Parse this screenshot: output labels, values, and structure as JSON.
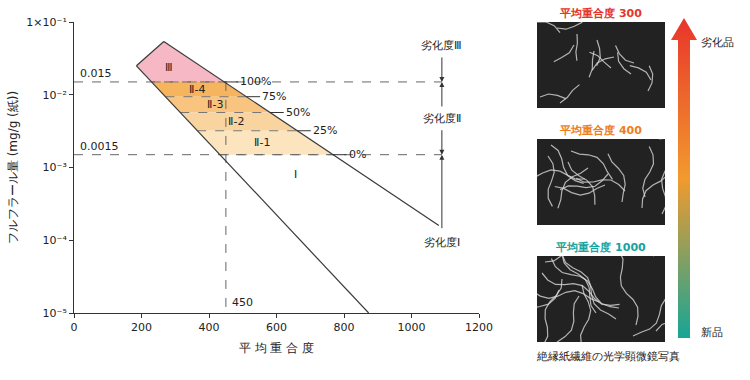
{
  "chart_data": {
    "type": "line",
    "x_label": "平 均 重 合 度",
    "y_label": "フルフラール量 (mg/g (紙))",
    "xlim": [
      0,
      1200
    ],
    "ylim": [
      1e-05,
      0.1
    ],
    "log": "y",
    "grid": false,
    "xticks": [
      0,
      200,
      400,
      600,
      800,
      1000,
      1200
    ],
    "yticks": [
      {
        "value": 1e-05,
        "label": "10⁻⁵"
      },
      {
        "value": 0.0001,
        "label": "10⁻⁴"
      },
      {
        "value": 0.001,
        "label": "10⁻³"
      },
      {
        "value": 0.01,
        "label": "10⁻²"
      },
      {
        "value": 0.1,
        "label": "1×10⁻¹"
      }
    ],
    "series": [
      {
        "x": [
          266,
          1081
        ],
        "values": [
          0.054,
          0.00016
        ],
        "color": "#3a3a3a"
      },
      {
        "x": [
          185,
          873
        ],
        "values": [
          0.025,
          1e-05
        ],
        "color": "#3a3a3a"
      },
      {
        "x": [
          185,
          266
        ],
        "values": [
          0.025,
          0.054
        ],
        "color": "#3a3a3a"
      }
    ],
    "zones": [
      {
        "label": "Ⅲ",
        "color": "#f5b8c4",
        "x": [
          185,
          266,
          445,
          230
        ],
        "values": [
          0.025,
          0.054,
          0.015,
          0.015
        ]
      }
    ],
    "levels": [
      {
        "text": "100%",
        "y": 0.015,
        "x_lower": 230,
        "x_upper": 445
      },
      {
        "text": "75%",
        "y": 0.0094,
        "x_lower": 271,
        "x_upper": 510
      },
      {
        "text": "50%",
        "y": 0.0057,
        "x_lower": 315,
        "x_upper": 580
      },
      {
        "text": "25%",
        "y": 0.0032,
        "x_lower": 365,
        "x_upper": 660
      },
      {
        "text": "0%",
        "y": 0.0015,
        "x_lower": 432,
        "x_upper": 766
      }
    ],
    "sub_zones": [
      {
        "label": "Ⅱ-4",
        "color": "#f6b45f"
      },
      {
        "label": "Ⅱ-3",
        "color": "#f8c47f"
      },
      {
        "label": "Ⅱ-2",
        "color": "#fad49e"
      },
      {
        "label": "Ⅱ-1",
        "color": "#fce4be"
      }
    ],
    "thresholds": [
      {
        "value": 0.015,
        "label": "0.015"
      },
      {
        "value": 0.0015,
        "label": "0.0015"
      }
    ],
    "vertical_line": {
      "x": 450,
      "label": "450"
    },
    "annotations": [
      {
        "text": "Ⅰ",
        "x": 656,
        "y": 0.0008
      }
    ],
    "degradation": {
      "x": 1090,
      "labels": [
        "劣化度Ⅲ",
        "劣化度Ⅱ",
        "劣化度Ⅰ"
      ]
    }
  },
  "micrographs": {
    "caption": "絶縁紙繊維の光学顕微鏡写真",
    "items": [
      {
        "label": "平均重合度 300",
        "color": "#e5352b"
      },
      {
        "label": "平均重合度 400",
        "color": "#ef7d22"
      },
      {
        "label": "平均重合度 1000",
        "color": "#17a39f"
      }
    ],
    "arrow": {
      "top": "劣化品",
      "bottom": "新品",
      "colors": [
        "#e8352a",
        "#f29a2e",
        "#17a596"
      ]
    }
  }
}
